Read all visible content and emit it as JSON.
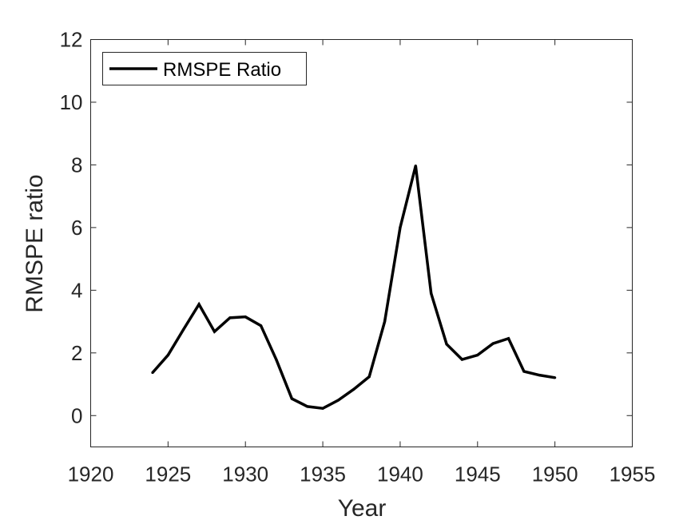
{
  "chart_data": {
    "type": "line",
    "xlabel": "Year",
    "ylabel": "RMSPE ratio",
    "xlim": [
      1920,
      1955
    ],
    "ylim": [
      -1,
      12
    ],
    "xticks": [
      1920,
      1925,
      1930,
      1935,
      1940,
      1945,
      1950,
      1955
    ],
    "yticks": [
      0,
      2,
      4,
      6,
      8,
      10,
      12
    ],
    "xtick_labels": [
      "1920",
      "1925",
      "1930",
      "1935",
      "1940",
      "1945",
      "1950",
      "1955"
    ],
    "ytick_labels": [
      "0",
      "2",
      "4",
      "6",
      "8",
      "10",
      "12"
    ],
    "grid": false,
    "legend_position": "top-left",
    "series": [
      {
        "name": "RMSPE Ratio",
        "color": "#000000",
        "x": [
          1924,
          1925,
          1926,
          1927,
          1928,
          1929,
          1930,
          1931,
          1932,
          1933,
          1934,
          1935,
          1936,
          1937,
          1938,
          1939,
          1940,
          1941,
          1942,
          1943,
          1944,
          1945,
          1946,
          1947,
          1948,
          1949,
          1950
        ],
        "y": [
          1.37,
          1.93,
          2.75,
          3.55,
          2.68,
          3.12,
          3.15,
          2.87,
          1.78,
          0.54,
          0.29,
          0.23,
          0.49,
          0.84,
          1.24,
          3.0,
          6.0,
          7.97,
          3.9,
          2.28,
          1.79,
          1.93,
          2.3,
          2.46,
          1.41,
          1.29,
          1.21
        ]
      }
    ]
  }
}
